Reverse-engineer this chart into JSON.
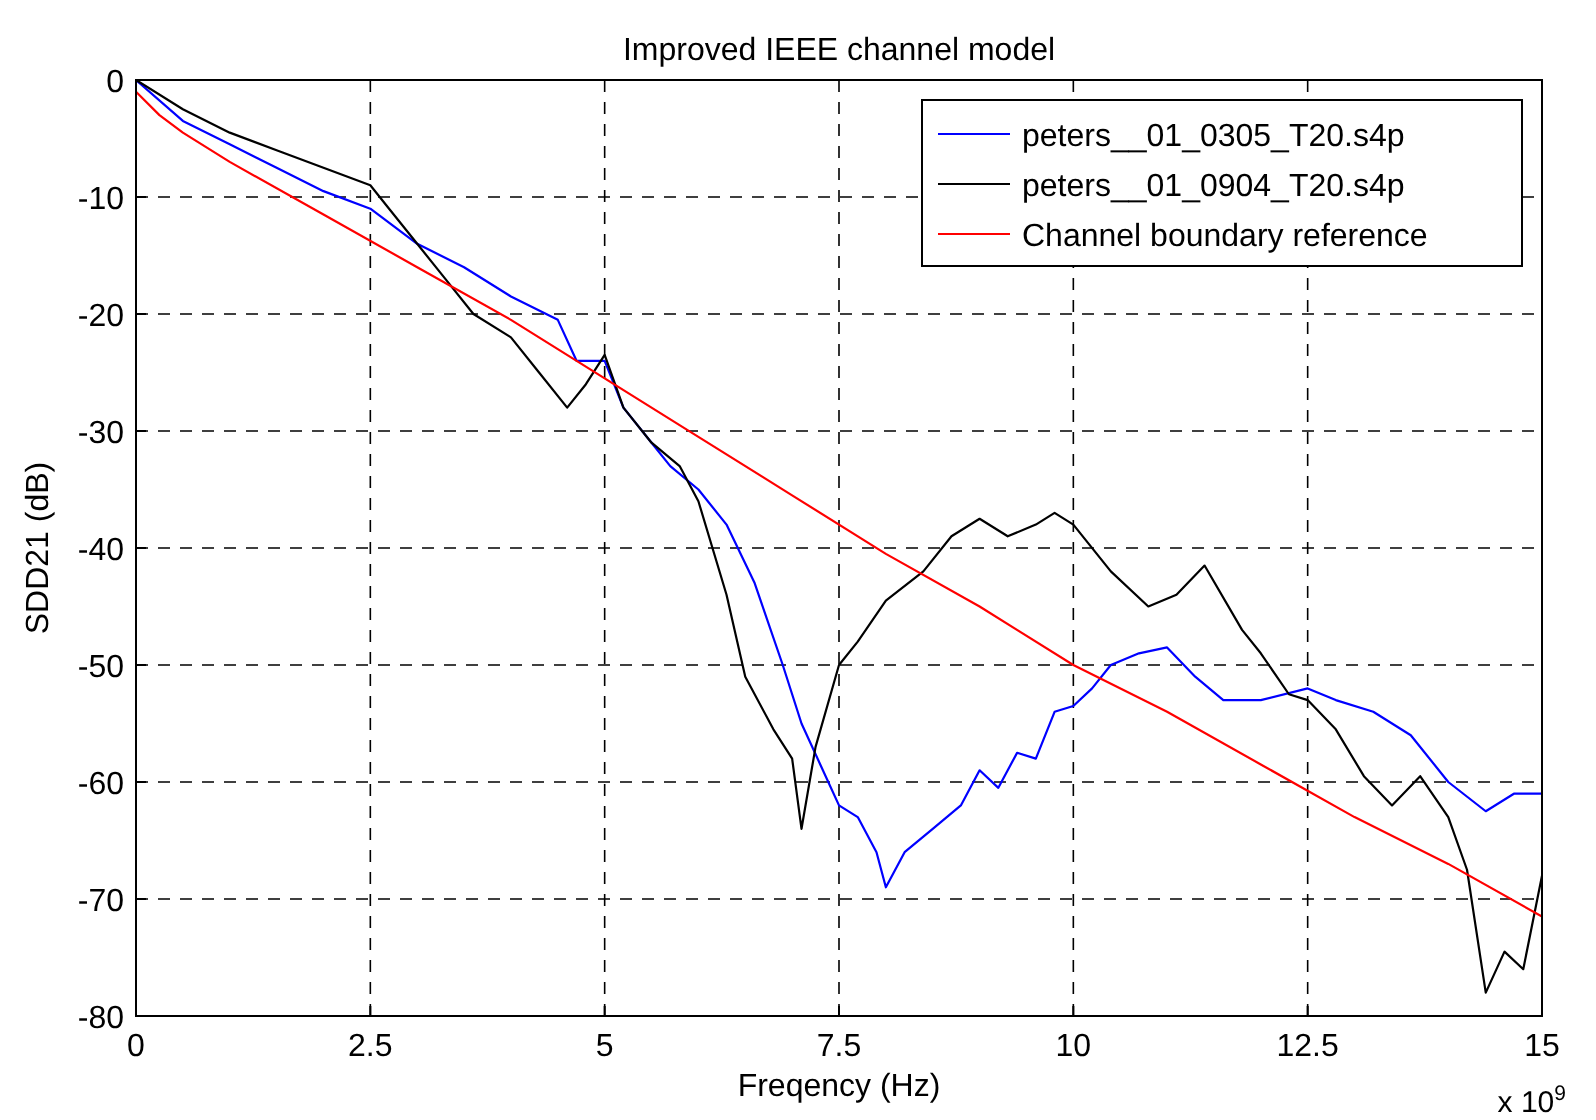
{
  "chart_data": {
    "type": "line",
    "title": "Improved IEEE channel model",
    "xlabel": "Freqency (Hz)",
    "ylabel": "SDD21 (dB)",
    "annotations": [
      "x 10$^{9}$"
    ],
    "xlim": [
      0,
      15
    ],
    "xticks": [
      0,
      2.5,
      5,
      7.5,
      10,
      12.5,
      15
    ],
    "ylim": [
      -80,
      0
    ],
    "yticks": [
      -80,
      -70,
      -60,
      -50,
      -40,
      -30,
      -20,
      -10,
      0
    ],
    "grid": true,
    "legend": "top right",
    "line_style": "solid",
    "series": [
      {
        "name": "peters__01_0305_T20.s4p",
        "color": "#0000ff",
        "x": [
          0,
          0.5,
          1,
          1.5,
          2,
          2.5,
          3,
          3.5,
          4,
          4.5,
          4.7,
          5,
          5.2,
          5.5,
          5.7,
          6,
          6.3,
          6.6,
          6.9,
          7.1,
          7.3,
          7.5,
          7.7,
          7.9,
          8,
          8.2,
          8.5,
          8.8,
          9,
          9.2,
          9.4,
          9.6,
          9.8,
          10,
          10.2,
          10.4,
          10.7,
          11,
          11.3,
          11.6,
          12,
          12.5,
          12.8,
          13.2,
          13.6,
          14,
          14.4,
          14.7,
          15
        ],
        "values": [
          0,
          -3.5,
          -5.5,
          -7.5,
          -9.5,
          -11,
          -14,
          -16,
          -18.5,
          -20.5,
          -24,
          -24,
          -28,
          -31,
          -33,
          -35,
          -38,
          -43,
          -50,
          -55,
          -58.5,
          -62,
          -63,
          -66,
          -69,
          -66,
          -64,
          -62,
          -59,
          -60.5,
          -57.5,
          -58,
          -54,
          -53.5,
          -52,
          -50,
          -49,
          -48.5,
          -51,
          -53,
          -53,
          -52,
          -53,
          -54,
          -56,
          -60,
          -62.5,
          -61,
          -61
        ]
      },
      {
        "name": "peters__01_0904_T20.s4p",
        "color": "#000000",
        "x": [
          0,
          0.5,
          1,
          1.5,
          2,
          2.5,
          2.7,
          3,
          3.3,
          3.6,
          4,
          4.3,
          4.6,
          4.8,
          5,
          5.2,
          5.5,
          5.8,
          6,
          6.3,
          6.5,
          6.8,
          7,
          7.1,
          7.25,
          7.5,
          7.7,
          8,
          8.4,
          8.7,
          9,
          9.3,
          9.6,
          9.8,
          10,
          10.4,
          10.8,
          11.1,
          11.4,
          11.8,
          12,
          12.3,
          12.5,
          12.8,
          13.1,
          13.4,
          13.7,
          14,
          14.2,
          14.4,
          14.6,
          14.8,
          15
        ],
        "values": [
          0,
          -2.5,
          -4.5,
          -6,
          -7.5,
          -9,
          -11,
          -14,
          -17,
          -20,
          -22,
          -25,
          -28,
          -26,
          -23.5,
          -28,
          -31,
          -33,
          -36,
          -44,
          -51,
          -55.5,
          -58,
          -64,
          -57,
          -50,
          -48,
          -44.5,
          -42,
          -39,
          -37.5,
          -39,
          -38,
          -37,
          -38,
          -42,
          -45,
          -44,
          -41.5,
          -47,
          -49,
          -52.5,
          -53,
          -55.5,
          -59.5,
          -62,
          -59.5,
          -63,
          -67.5,
          -78,
          -74.5,
          -76,
          -68
        ]
      },
      {
        "name": "Channel boundary reference",
        "color": "#ff0000",
        "x": [
          0,
          0.25,
          0.5,
          1,
          2,
          3,
          4,
          5,
          6,
          7,
          8,
          9,
          10,
          11,
          12,
          13,
          14,
          15
        ],
        "values": [
          -1,
          -3,
          -4.5,
          -7,
          -11.5,
          -16,
          -20.5,
          -25.5,
          -30.5,
          -35.5,
          -40.5,
          -45,
          -50,
          -54,
          -58.5,
          -63,
          -67,
          -71.5
        ]
      }
    ]
  }
}
